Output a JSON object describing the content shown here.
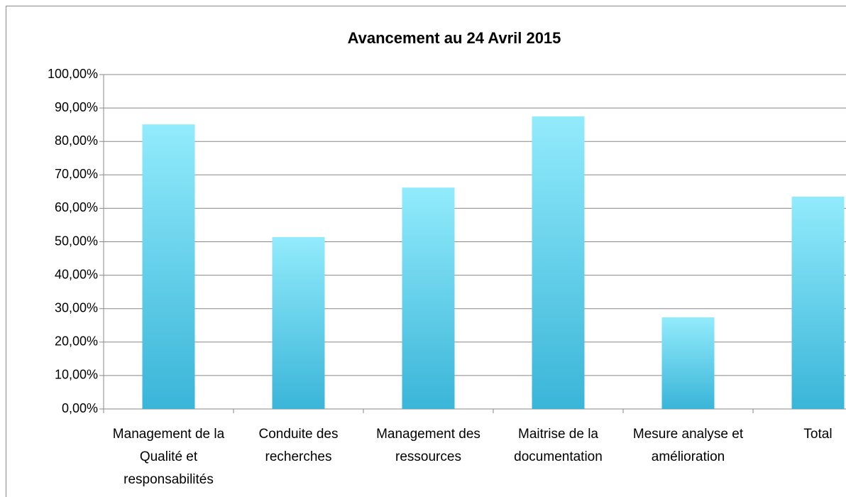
{
  "chart_data": {
    "type": "bar",
    "title": "Avancement au 24 Avril 2015",
    "categories": [
      "Management de la Qualité et responsabilités",
      "Conduite des recherches",
      "Management des ressources",
      "Maitrise de la documentation",
      "Mesure analyse et amélioration",
      "Total"
    ],
    "values": [
      85.1,
      51.4,
      66.2,
      87.5,
      27.4,
      63.5
    ],
    "color": "#3ab5d8",
    "ylim": [
      0,
      100
    ],
    "yticks": [
      {
        "value": 0,
        "label": "0,00%"
      },
      {
        "value": 10,
        "label": "10,00%"
      },
      {
        "value": 20,
        "label": "20,00%"
      },
      {
        "value": 30,
        "label": "30,00%"
      },
      {
        "value": 40,
        "label": "40,00%"
      },
      {
        "value": 50,
        "label": "50,00%"
      },
      {
        "value": 60,
        "label": "60,00%"
      },
      {
        "value": 70,
        "label": "70,00%"
      },
      {
        "value": 80,
        "label": "80,00%"
      },
      {
        "value": 90,
        "label": "90,00%"
      },
      {
        "value": 100,
        "label": "100,00%"
      }
    ],
    "grid": true
  }
}
